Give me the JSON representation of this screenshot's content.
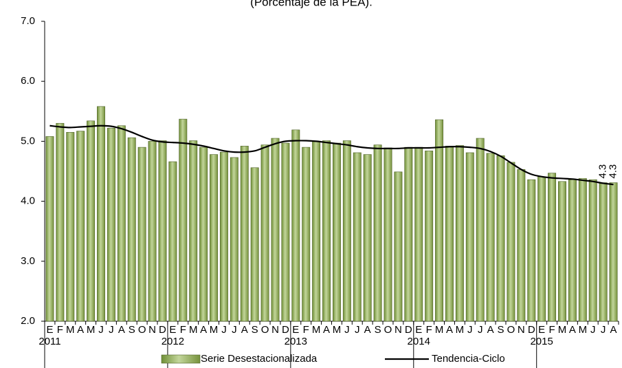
{
  "chart_data": {
    "type": "bar",
    "title": "(Porcentaje de la PEA).",
    "categories": [
      "E",
      "F",
      "M",
      "A",
      "M",
      "J",
      "J",
      "A",
      "S",
      "O",
      "N",
      "D",
      "E",
      "F",
      "M",
      "A",
      "M",
      "J",
      "J",
      "A",
      "S",
      "O",
      "N",
      "D",
      "E",
      "F",
      "M",
      "A",
      "M",
      "J",
      "J",
      "A",
      "S",
      "O",
      "N",
      "D",
      "E",
      "F",
      "M",
      "A",
      "M",
      "J",
      "J",
      "A",
      "S",
      "O",
      "N",
      "D",
      "E",
      "F",
      "M",
      "A",
      "M",
      "J",
      "J",
      "A"
    ],
    "groups": [
      {
        "name": "2011",
        "count": 12
      },
      {
        "name": "2012",
        "count": 12
      },
      {
        "name": "2013",
        "count": 12
      },
      {
        "name": "2014",
        "count": 12
      },
      {
        "name": "2015",
        "count": 8
      }
    ],
    "series": [
      {
        "name": "Serie Desestacionalizada",
        "type": "bar",
        "color": "#9bbb59",
        "values": [
          5.08,
          5.3,
          5.15,
          5.17,
          5.34,
          5.58,
          5.22,
          5.26,
          5.06,
          4.9,
          5.0,
          5.01,
          4.66,
          5.37,
          5.01,
          4.9,
          4.78,
          4.82,
          4.73,
          4.92,
          4.56,
          4.94,
          5.05,
          4.97,
          5.19,
          4.9,
          5.0,
          5.01,
          4.97,
          5.01,
          4.81,
          4.78,
          4.94,
          4.89,
          4.49,
          4.9,
          4.9,
          4.84,
          5.36,
          4.92,
          4.93,
          4.81,
          5.05,
          4.8,
          4.76,
          4.65,
          4.53,
          4.36,
          4.41,
          4.47,
          4.33,
          4.36,
          4.38,
          4.36,
          4.31,
          4.31
        ],
        "value_labels": [
          null,
          null,
          null,
          null,
          null,
          null,
          null,
          null,
          null,
          null,
          null,
          null,
          null,
          null,
          null,
          null,
          null,
          null,
          null,
          null,
          null,
          null,
          null,
          null,
          null,
          null,
          null,
          null,
          null,
          null,
          null,
          null,
          null,
          null,
          null,
          null,
          null,
          null,
          null,
          null,
          null,
          null,
          null,
          null,
          null,
          null,
          null,
          null,
          null,
          null,
          null,
          null,
          null,
          null,
          "4.3",
          "4.3"
        ]
      },
      {
        "name": "Tendencia-Ciclo",
        "type": "line",
        "color": "#000000",
        "values": [
          5.26,
          5.24,
          5.23,
          5.24,
          5.25,
          5.26,
          5.25,
          5.21,
          5.15,
          5.08,
          5.02,
          4.99,
          4.98,
          4.97,
          4.95,
          4.92,
          4.88,
          4.84,
          4.82,
          4.82,
          4.84,
          4.9,
          4.96,
          5.0,
          5.01,
          5.01,
          5.0,
          4.98,
          4.96,
          4.94,
          4.91,
          4.89,
          4.88,
          4.88,
          4.88,
          4.89,
          4.89,
          4.89,
          4.9,
          4.91,
          4.91,
          4.9,
          4.88,
          4.83,
          4.75,
          4.64,
          4.53,
          4.45,
          4.41,
          4.39,
          4.38,
          4.37,
          4.35,
          4.33,
          4.3,
          4.28
        ]
      }
    ],
    "ylim": [
      2,
      7
    ],
    "yticks": [
      {
        "value": 2,
        "label": "2.0"
      },
      {
        "value": 3,
        "label": "3.0"
      },
      {
        "value": 4,
        "label": "4.0"
      },
      {
        "value": 5,
        "label": "5.0"
      },
      {
        "value": 6,
        "label": "6.0"
      },
      {
        "value": 7,
        "label": "7.0"
      }
    ],
    "grid": false
  }
}
